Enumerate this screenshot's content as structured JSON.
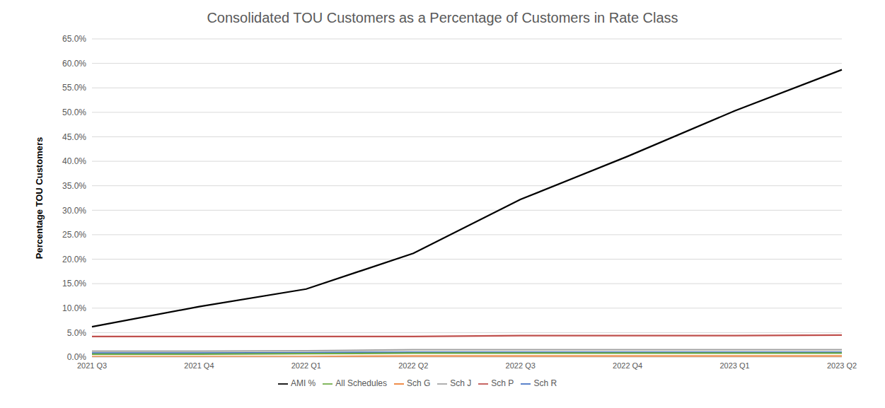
{
  "chart_data": {
    "type": "line",
    "title": "Consolidated TOU Customers as a Percentage of Customers in Rate Class",
    "y_label": "Percentage TOU Customers",
    "categories": [
      "2021 Q3",
      "2021 Q4",
      "2022 Q1",
      "2022 Q2",
      "2022 Q3",
      "2022 Q4",
      "2023 Q1",
      "2023 Q2"
    ],
    "series": [
      {
        "name": "Sch R",
        "color": "#4472c4",
        "values": [
          0.8,
          0.8,
          0.9,
          1.0,
          1.0,
          1.0,
          1.0,
          1.0
        ]
      },
      {
        "name": "Sch G",
        "color": "#ed7d31",
        "values": [
          0.1,
          0.1,
          0.1,
          0.2,
          0.2,
          0.2,
          0.2,
          0.2
        ]
      },
      {
        "name": "Sch J",
        "color": "#a5a5a5",
        "values": [
          1.2,
          1.2,
          1.3,
          1.5,
          1.5,
          1.5,
          1.5,
          1.5
        ]
      },
      {
        "name": "Sch P",
        "color": "#c0504d",
        "values": [
          4.2,
          4.2,
          4.2,
          4.2,
          4.4,
          4.4,
          4.4,
          4.5
        ]
      },
      {
        "name": "All Schedules",
        "color": "#70ad47",
        "values": [
          0.6,
          0.6,
          0.7,
          0.8,
          0.8,
          0.8,
          0.8,
          0.8
        ]
      },
      {
        "name": "AMI %",
        "color": "#000000",
        "values": [
          6.2,
          10.3,
          13.9,
          21.2,
          32.2,
          41.0,
          50.3,
          58.7
        ]
      }
    ],
    "ylim": [
      0,
      65
    ],
    "yticks": [
      {
        "value": 0,
        "label": "0.0%"
      },
      {
        "value": 5,
        "label": "5.0%"
      },
      {
        "value": 10,
        "label": "10.0%"
      },
      {
        "value": 15,
        "label": "15.0%"
      },
      {
        "value": 20,
        "label": "20.0%"
      },
      {
        "value": 25,
        "label": "25.0%"
      },
      {
        "value": 30,
        "label": "30.0%"
      },
      {
        "value": 35,
        "label": "35.0%"
      },
      {
        "value": 40,
        "label": "40.0%"
      },
      {
        "value": 45,
        "label": "45.0%"
      },
      {
        "value": 50,
        "label": "50.0%"
      },
      {
        "value": 55,
        "label": "55.0%"
      },
      {
        "value": 60,
        "label": "60.0%"
      },
      {
        "value": 65,
        "label": "65.0%"
      }
    ],
    "grid": true,
    "legend": "bottom"
  }
}
